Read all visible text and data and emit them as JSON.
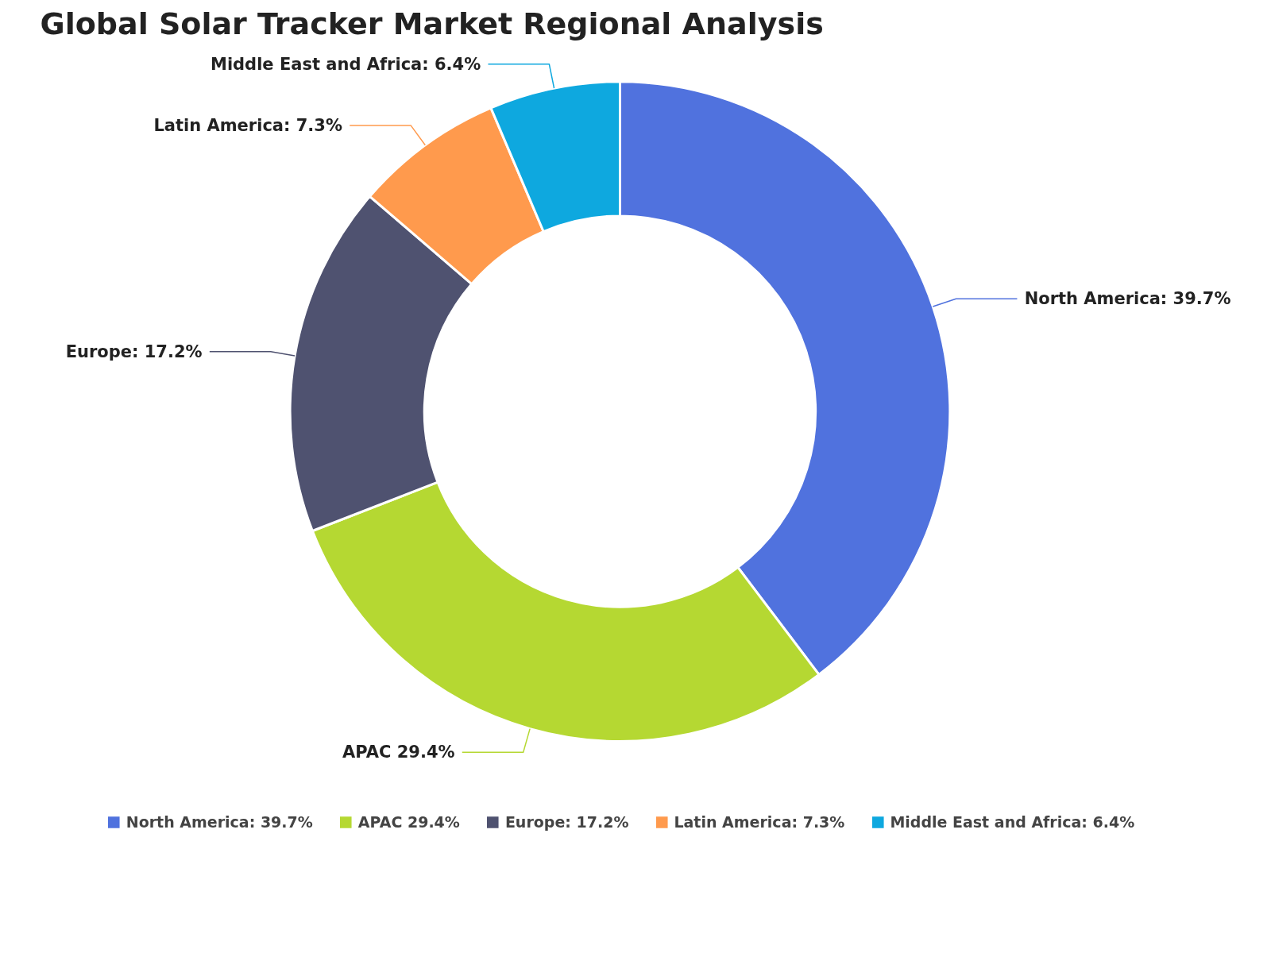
{
  "chart_data": {
    "type": "donut",
    "title": "Global Solar Tracker Market Regional Analysis",
    "categories": [
      "North America: 39.7%",
      "APAC 29.4%",
      "Europe: 17.2%",
      "Latin America: 7.3%",
      "Middle East and Africa: 6.4%"
    ],
    "values": [
      39.7,
      29.4,
      17.2,
      7.3,
      6.4
    ],
    "colors": [
      "#5072de",
      "#b5d832",
      "#4f5270",
      "#ff9a4d",
      "#0ea8df"
    ],
    "legend": "bottom"
  }
}
